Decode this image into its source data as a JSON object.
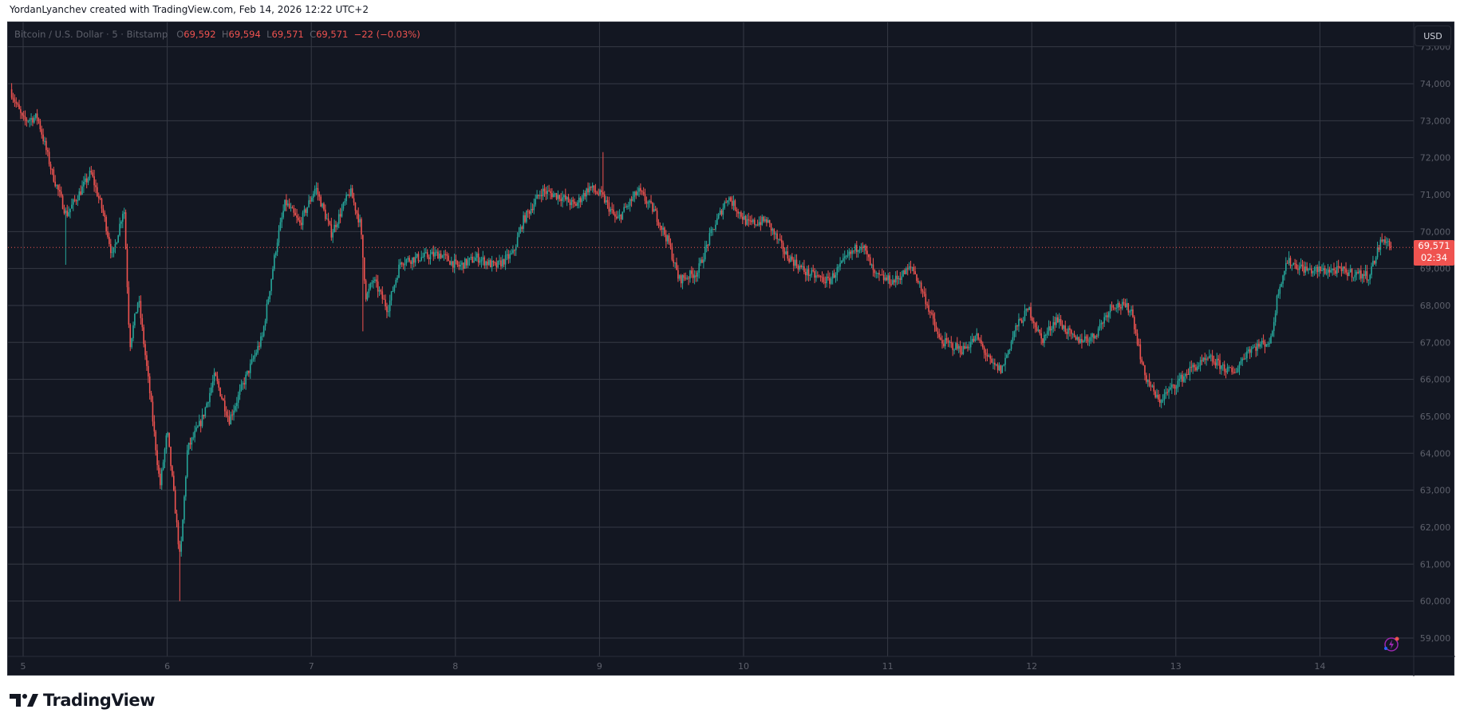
{
  "credit": "YordanLyanchev created with TradingView.com, Feb 14, 2026 12:22 UTC+2",
  "legend": {
    "symbol": "Bitcoin / U.S. Dollar · 5 · Bitstamp",
    "o_label": "O",
    "o": "69,592",
    "h_label": "H",
    "h": "69,594",
    "l_label": "L",
    "l": "69,571",
    "c_label": "C",
    "c": "69,571",
    "change": "−22 (−0.03%)"
  },
  "currency_button": "USD",
  "last_price": {
    "price": "69,571",
    "countdown": "02:34"
  },
  "brand": "TradingView",
  "colors": {
    "background": "#131722",
    "up": "#26a69a",
    "down": "#ef5350",
    "grid": "#363a45",
    "text": "#5d606b"
  },
  "chart_data": {
    "type": "candlestick",
    "title": "Bitcoin / U.S. Dollar · 5 · Bitstamp",
    "xlabel": "",
    "ylabel": "",
    "x_ticks": [
      "5",
      "6",
      "7",
      "8",
      "9",
      "10",
      "11",
      "12",
      "13",
      "14"
    ],
    "y_ticks": [
      59000,
      60000,
      61000,
      62000,
      63000,
      64000,
      65000,
      66000,
      67000,
      68000,
      69000,
      70000,
      71000,
      72000,
      73000,
      74000,
      75000
    ],
    "ylim": [
      58700,
      75400
    ],
    "xlim_days": [
      4.9,
      15.05
    ],
    "grid": true,
    "last_price": 69571,
    "price_path": [
      [
        4.91,
        73850
      ],
      [
        5.0,
        73000
      ],
      [
        5.1,
        73100
      ],
      [
        5.2,
        71600
      ],
      [
        5.3,
        70450
      ],
      [
        5.4,
        71100
      ],
      [
        5.47,
        71600
      ],
      [
        5.56,
        70450
      ],
      [
        5.62,
        69300
      ],
      [
        5.7,
        70700
      ],
      [
        5.74,
        66900
      ],
      [
        5.8,
        68200
      ],
      [
        5.88,
        65600
      ],
      [
        5.95,
        63100
      ],
      [
        6.0,
        64600
      ],
      [
        6.04,
        63100
      ],
      [
        6.09,
        61100
      ],
      [
        6.14,
        64100
      ],
      [
        6.24,
        64900
      ],
      [
        6.33,
        66100
      ],
      [
        6.43,
        64900
      ],
      [
        6.53,
        65900
      ],
      [
        6.66,
        67150
      ],
      [
        6.76,
        69700
      ],
      [
        6.82,
        70800
      ],
      [
        6.92,
        70200
      ],
      [
        7.03,
        71200
      ],
      [
        7.14,
        69950
      ],
      [
        7.27,
        71100
      ],
      [
        7.34,
        70200
      ],
      [
        7.38,
        68200
      ],
      [
        7.43,
        68700
      ],
      [
        7.53,
        67900
      ],
      [
        7.62,
        69200
      ],
      [
        7.76,
        69300
      ],
      [
        7.89,
        69400
      ],
      [
        8.02,
        69050
      ],
      [
        8.15,
        69300
      ],
      [
        8.28,
        69050
      ],
      [
        8.4,
        69400
      ],
      [
        8.47,
        70300
      ],
      [
        8.6,
        71100
      ],
      [
        8.73,
        70950
      ],
      [
        8.83,
        70700
      ],
      [
        8.93,
        71200
      ],
      [
        9.02,
        70950
      ],
      [
        9.12,
        70300
      ],
      [
        9.27,
        71100
      ],
      [
        9.38,
        70550
      ],
      [
        9.48,
        69700
      ],
      [
        9.55,
        68700
      ],
      [
        9.68,
        68900
      ],
      [
        9.77,
        69900
      ],
      [
        9.89,
        70950
      ],
      [
        10.03,
        70200
      ],
      [
        10.16,
        70300
      ],
      [
        10.29,
        69400
      ],
      [
        10.43,
        68900
      ],
      [
        10.59,
        68650
      ],
      [
        10.72,
        69300
      ],
      [
        10.82,
        69700
      ],
      [
        10.91,
        68800
      ],
      [
        11.04,
        68650
      ],
      [
        11.17,
        69050
      ],
      [
        11.26,
        68200
      ],
      [
        11.36,
        67050
      ],
      [
        11.52,
        66800
      ],
      [
        11.62,
        67150
      ],
      [
        11.72,
        66400
      ],
      [
        11.79,
        66250
      ],
      [
        11.89,
        67400
      ],
      [
        11.98,
        67900
      ],
      [
        12.07,
        67050
      ],
      [
        12.17,
        67650
      ],
      [
        12.3,
        67050
      ],
      [
        12.43,
        67150
      ],
      [
        12.56,
        68050
      ],
      [
        12.69,
        67900
      ],
      [
        12.78,
        66150
      ],
      [
        12.88,
        65400
      ],
      [
        12.98,
        65800
      ],
      [
        13.11,
        66300
      ],
      [
        13.24,
        66550
      ],
      [
        13.4,
        66150
      ],
      [
        13.5,
        66800
      ],
      [
        13.66,
        67050
      ],
      [
        13.71,
        68400
      ],
      [
        13.77,
        69200
      ],
      [
        13.92,
        68950
      ],
      [
        14.12,
        68950
      ],
      [
        14.34,
        68800
      ],
      [
        14.42,
        69700
      ],
      [
        14.45,
        69800
      ],
      [
        14.5,
        69571
      ]
    ],
    "extreme_wicks": [
      [
        5.3,
        69100
      ],
      [
        6.09,
        60000
      ],
      [
        9.02,
        72150
      ],
      [
        7.36,
        67300
      ]
    ]
  }
}
